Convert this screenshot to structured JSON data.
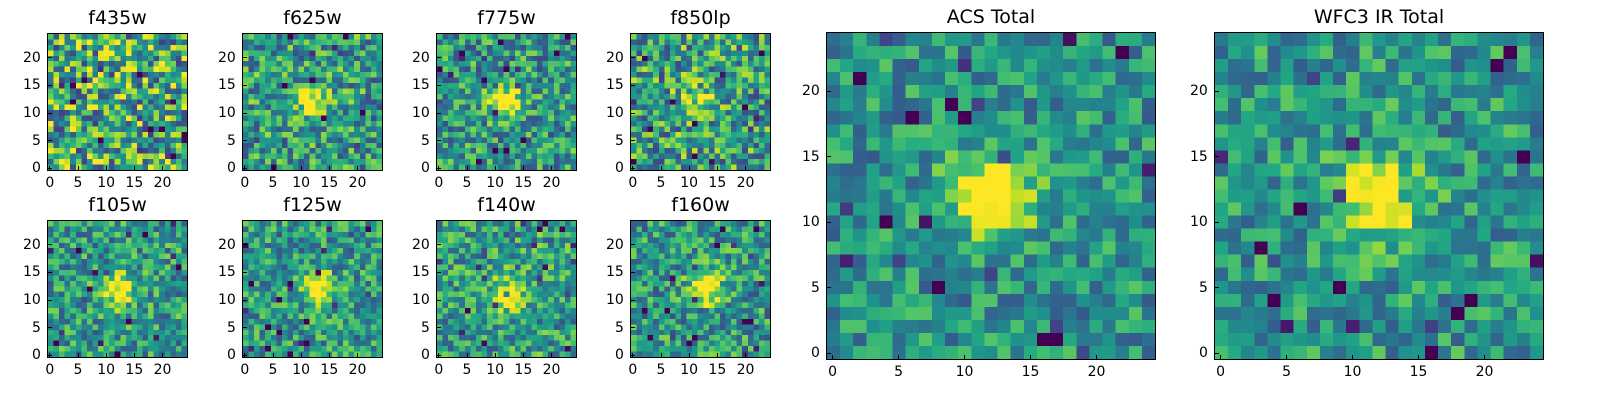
{
  "chart_data": [
    {
      "type": "heatmap",
      "title": "f435w",
      "xticks": [
        0,
        5,
        10,
        15,
        20
      ],
      "yticks": [
        0,
        5,
        10,
        15,
        20
      ],
      "xlim": [
        0,
        24
      ],
      "ylim": [
        0,
        24
      ],
      "grid": false,
      "colormap": "viridis",
      "source_peak": [
        12,
        12
      ],
      "source_strength": 0.05,
      "noise": 0.55
    },
    {
      "type": "heatmap",
      "title": "f625w",
      "xticks": [
        0,
        5,
        10,
        15,
        20
      ],
      "yticks": [
        0,
        5,
        10,
        15,
        20
      ],
      "xlim": [
        0,
        24
      ],
      "ylim": [
        0,
        24
      ],
      "grid": false,
      "colormap": "viridis",
      "source_peak": [
        12,
        12
      ],
      "source_strength": 0.45,
      "noise": 0.45
    },
    {
      "type": "heatmap",
      "title": "f775w",
      "xticks": [
        0,
        5,
        10,
        15,
        20
      ],
      "yticks": [
        0,
        5,
        10,
        15,
        20
      ],
      "xlim": [
        0,
        24
      ],
      "ylim": [
        0,
        24
      ],
      "grid": false,
      "colormap": "viridis",
      "source_peak": [
        12,
        12
      ],
      "source_strength": 0.6,
      "noise": 0.45
    },
    {
      "type": "heatmap",
      "title": "f850lp",
      "xticks": [
        0,
        5,
        10,
        15,
        20
      ],
      "yticks": [
        0,
        5,
        10,
        15,
        20
      ],
      "xlim": [
        0,
        24
      ],
      "ylim": [
        0,
        24
      ],
      "grid": false,
      "colormap": "viridis",
      "source_peak": [
        12,
        12
      ],
      "source_strength": 0.35,
      "noise": 0.5
    },
    {
      "type": "heatmap",
      "title": "f105w",
      "xticks": [
        0,
        5,
        10,
        15,
        20
      ],
      "yticks": [
        0,
        5,
        10,
        15,
        20
      ],
      "xlim": [
        0,
        24
      ],
      "ylim": [
        0,
        24
      ],
      "grid": false,
      "colormap": "viridis",
      "source_peak": [
        12,
        12
      ],
      "source_strength": 0.5,
      "noise": 0.4
    },
    {
      "type": "heatmap",
      "title": "f125w",
      "xticks": [
        0,
        5,
        10,
        15,
        20
      ],
      "yticks": [
        0,
        5,
        10,
        15,
        20
      ],
      "xlim": [
        0,
        24
      ],
      "ylim": [
        0,
        24
      ],
      "grid": false,
      "colormap": "viridis",
      "source_peak": [
        13,
        12
      ],
      "source_strength": 0.55,
      "noise": 0.4
    },
    {
      "type": "heatmap",
      "title": "f140w",
      "xticks": [
        0,
        5,
        10,
        15,
        20
      ],
      "yticks": [
        0,
        5,
        10,
        15,
        20
      ],
      "xlim": [
        0,
        24
      ],
      "ylim": [
        0,
        24
      ],
      "grid": false,
      "colormap": "viridis",
      "source_peak": [
        12,
        11
      ],
      "source_strength": 0.35,
      "noise": 0.4
    },
    {
      "type": "heatmap",
      "title": "f160w",
      "xticks": [
        0,
        5,
        10,
        15,
        20
      ],
      "yticks": [
        0,
        5,
        10,
        15,
        20
      ],
      "xlim": [
        0,
        24
      ],
      "ylim": [
        0,
        24
      ],
      "grid": false,
      "colormap": "viridis",
      "source_peak": [
        13,
        12
      ],
      "source_strength": 0.55,
      "noise": 0.42
    },
    {
      "type": "heatmap",
      "title": "ACS Total",
      "xticks": [
        0,
        5,
        10,
        15,
        20
      ],
      "yticks": [
        0,
        5,
        10,
        15,
        20
      ],
      "xlim": [
        0,
        24
      ],
      "ylim": [
        0,
        24
      ],
      "grid": false,
      "colormap": "viridis",
      "source_peak": [
        12,
        12
      ],
      "source_strength": 0.7,
      "noise": 0.35
    },
    {
      "type": "heatmap",
      "title": "WFC3 IR Total",
      "xticks": [
        0,
        5,
        10,
        15,
        20
      ],
      "yticks": [
        0,
        5,
        10,
        15,
        20
      ],
      "xlim": [
        0,
        24
      ],
      "ylim": [
        0,
        24
      ],
      "grid": false,
      "colormap": "viridis",
      "source_peak": [
        12,
        12
      ],
      "source_strength": 0.6,
      "noise": 0.35
    }
  ]
}
